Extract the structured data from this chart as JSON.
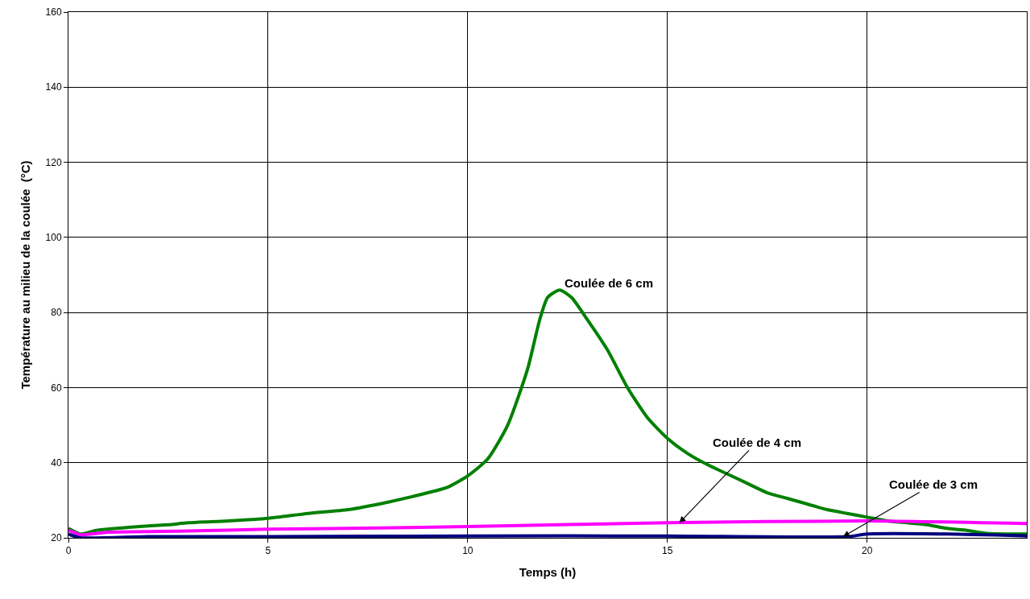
{
  "chart_data": {
    "type": "line",
    "xlabel": "Temps (h)",
    "ylabel": "Température au milieu de la coulée  (°C)",
    "xlim": [
      0,
      24
    ],
    "xticks": [
      0,
      5,
      10,
      15,
      20
    ],
    "ylim": [
      20,
      160
    ],
    "yticks": [
      20,
      40,
      60,
      80,
      100,
      120,
      140,
      160
    ],
    "grid": true,
    "series": [
      {
        "color": "#008000",
        "x": [
          0,
          0.3,
          0.7,
          1.5,
          2.5,
          3,
          4,
          5,
          6,
          7,
          8,
          9,
          9.5,
          10,
          10.5,
          11,
          11.5,
          11.8,
          12,
          12.3,
          12.6,
          13,
          13.5,
          14,
          14.5,
          15,
          15.5,
          16,
          16.5,
          17,
          17.5,
          18,
          18.5,
          19,
          19.5,
          20,
          20.5,
          21,
          21.5,
          22,
          22.5,
          23,
          24
        ],
        "values": [
          22.5,
          21,
          22,
          22.8,
          23.5,
          24,
          24.5,
          25.2,
          26.5,
          27.5,
          29.5,
          32,
          33.5,
          36.5,
          41,
          50,
          65,
          78,
          84,
          86,
          84,
          78,
          70,
          60,
          52,
          46.5,
          42.5,
          39.5,
          37,
          34.5,
          32,
          30.5,
          29,
          27.5,
          26.5,
          25.5,
          24.5,
          24,
          23.5,
          22.5,
          22,
          21.2,
          21
        ]
      },
      {
        "color": "#ff00ff",
        "x": [
          0,
          0.3,
          1,
          3,
          5,
          7,
          10,
          15,
          20,
          24
        ],
        "values": [
          22,
          20.8,
          21.5,
          21.8,
          22.3,
          22.5,
          23,
          24,
          24.5,
          23.8
        ]
      },
      {
        "color": "#000080",
        "x": [
          0,
          0.3,
          2,
          5,
          10,
          15,
          19.5,
          20,
          22,
          24
        ],
        "values": [
          21,
          20,
          20.3,
          20.3,
          20.5,
          20.5,
          20.3,
          21,
          21,
          20.5
        ]
      }
    ],
    "annotations": [
      {
        "text": "Coulée de 6 cm",
        "x": 12.3,
        "y": 86
      },
      {
        "text": "Coulée de 4 cm",
        "x": 15.3,
        "y": 24
      },
      {
        "text": "Coulée de 3 cm",
        "x": 19.4,
        "y": 20.3
      }
    ]
  }
}
